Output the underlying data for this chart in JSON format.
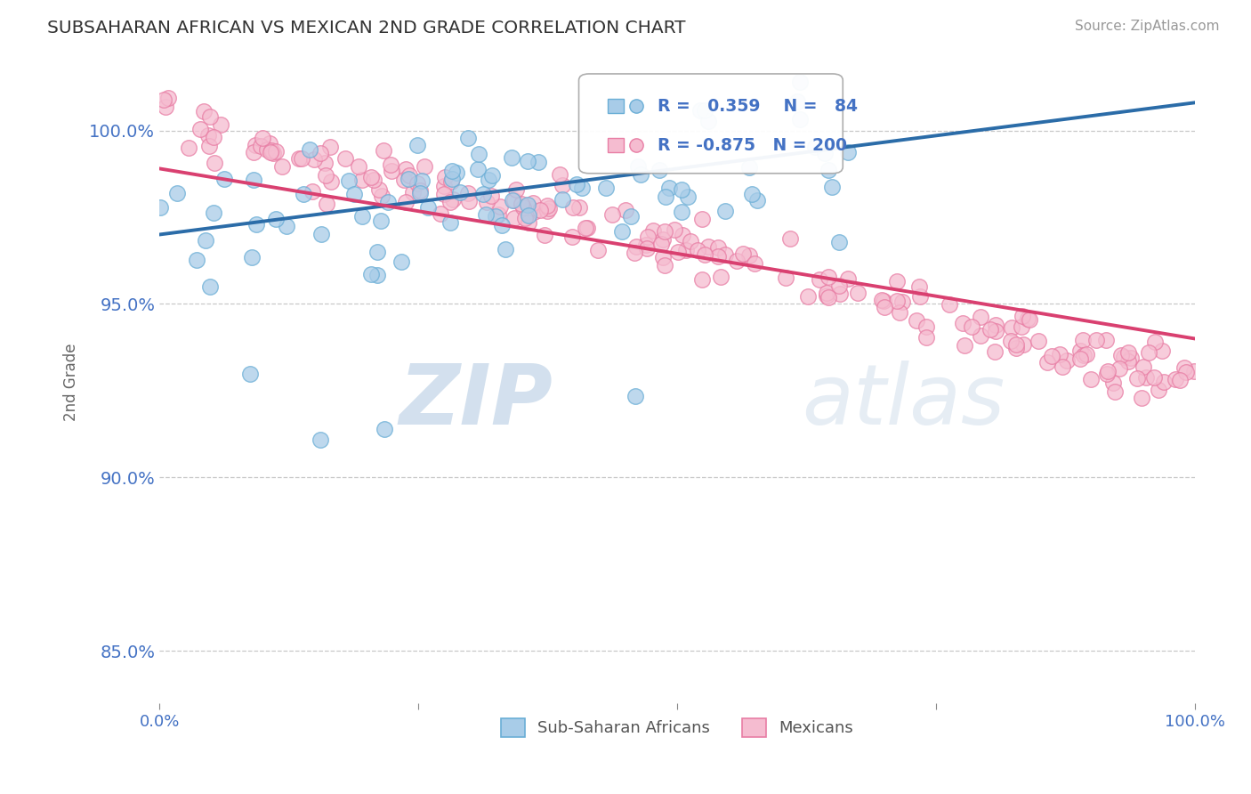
{
  "title": "SUBSAHARAN AFRICAN VS MEXICAN 2ND GRADE CORRELATION CHART",
  "source": "Source: ZipAtlas.com",
  "ylabel": "2nd Grade",
  "xlim": [
    0.0,
    100.0
  ],
  "ylim": [
    83.5,
    102.0
  ],
  "yticks": [
    85.0,
    90.0,
    95.0,
    100.0
  ],
  "ytick_labels": [
    "85.0%",
    "90.0%",
    "95.0%",
    "100.0%"
  ],
  "blue_color": "#a8cce8",
  "blue_edge": "#6aaed6",
  "pink_color": "#f5bcd0",
  "pink_edge": "#e87da4",
  "blue_line_color": "#2b6ca8",
  "pink_line_color": "#d94070",
  "R_blue": 0.359,
  "N_blue": 84,
  "R_pink": -0.875,
  "N_pink": 200,
  "watermark_zip": "ZIP",
  "watermark_atlas": "atlas",
  "legend_blue": "Sub-Saharan Africans",
  "legend_pink": "Mexicans",
  "grid_color": "#c8c8c8",
  "title_color": "#333333",
  "axis_label_color": "#4472c4",
  "legend_r_color": "#4472c4",
  "background_color": "#ffffff",
  "blue_line_start_y": 97.0,
  "blue_line_end_y": 100.8,
  "pink_line_start_y": 98.9,
  "pink_line_end_y": 94.0
}
